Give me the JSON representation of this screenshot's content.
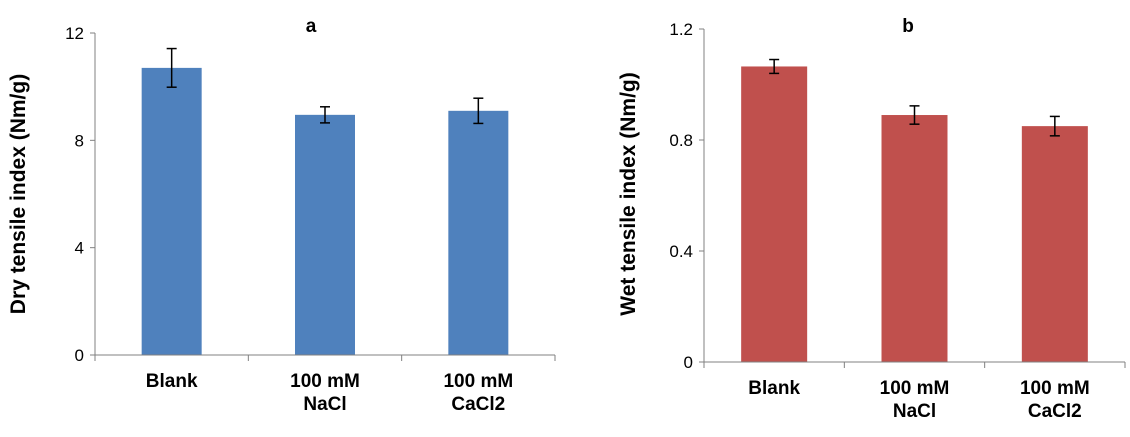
{
  "chart_data": [
    {
      "type": "bar",
      "title": "a",
      "xlabel": "",
      "ylabel": "Dry tensile index (Nm/g)",
      "categories": [
        [
          "Blank"
        ],
        [
          "100 mM",
          "NaCl"
        ],
        [
          "100 mM",
          "CaCl2"
        ]
      ],
      "values": [
        10.7,
        8.95,
        9.1
      ],
      "errors": [
        0.72,
        0.3,
        0.47
      ],
      "ylim": [
        0,
        12
      ],
      "yticks": [
        "0",
        "4",
        "8",
        "12"
      ],
      "ytick_values": [
        0,
        4,
        8,
        12
      ],
      "color": "#4F81BD",
      "grid": false,
      "legend": "none"
    },
    {
      "type": "bar",
      "title": "b",
      "xlabel": "",
      "ylabel": "Wet tensile index (Nm/g)",
      "categories": [
        [
          "Blank"
        ],
        [
          "100 mM",
          "NaCl"
        ],
        [
          "100 mM",
          "CaCl2"
        ]
      ],
      "values": [
        1.065,
        0.89,
        0.85
      ],
      "errors": [
        0.025,
        0.033,
        0.035
      ],
      "ylim": [
        0,
        1.2
      ],
      "yticks": [
        "0",
        "0.4",
        "0.8",
        "1.2"
      ],
      "ytick_values": [
        0,
        0.4,
        0.8,
        1.2
      ],
      "color": "#C0504D",
      "grid": false,
      "legend": "none"
    }
  ]
}
